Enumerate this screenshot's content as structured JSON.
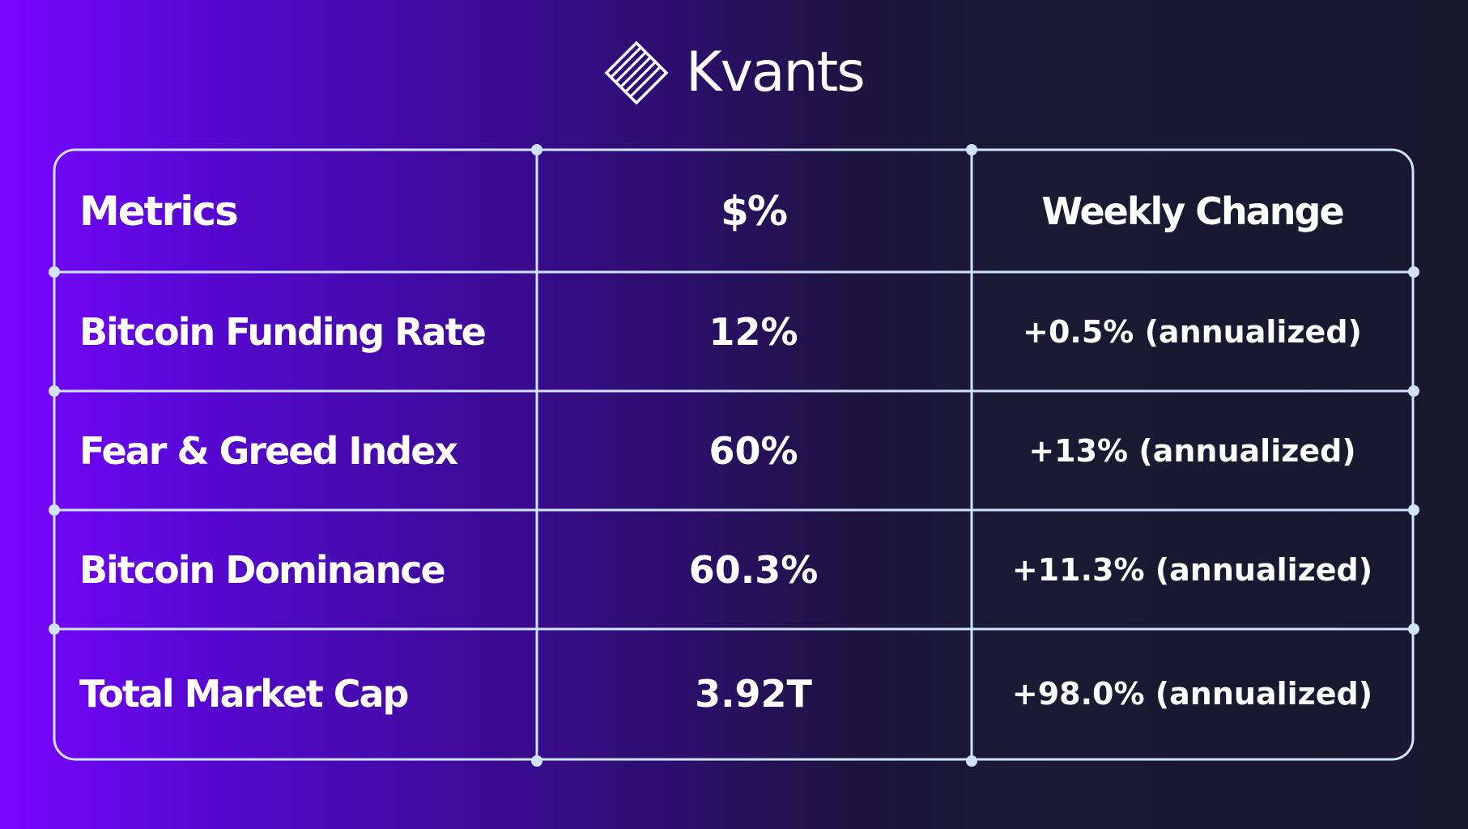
{
  "brand": {
    "name": "Kvants",
    "logo_icon": "striped-diamond-icon"
  },
  "table": {
    "headers": [
      "Metrics",
      "$%",
      "Weekly Change"
    ],
    "rows": [
      {
        "metric": "Bitcoin Funding Rate",
        "value": "12%",
        "change": "+0.5% (annualized)"
      },
      {
        "metric": "Fear & Greed Index",
        "value": "60%",
        "change": "+13% (annualized)"
      },
      {
        "metric": "Bitcoin Dominance",
        "value": "60.3%",
        "change": "+11.3% (annualized)"
      },
      {
        "metric": "Total Market Cap",
        "value": "3.92T",
        "change": "+98.0% (annualized)"
      }
    ]
  },
  "colors": {
    "gradient_start": "#7a06ff",
    "gradient_end": "#18182f",
    "grid_line": "#cfe3ff",
    "text": "#ffffff"
  }
}
